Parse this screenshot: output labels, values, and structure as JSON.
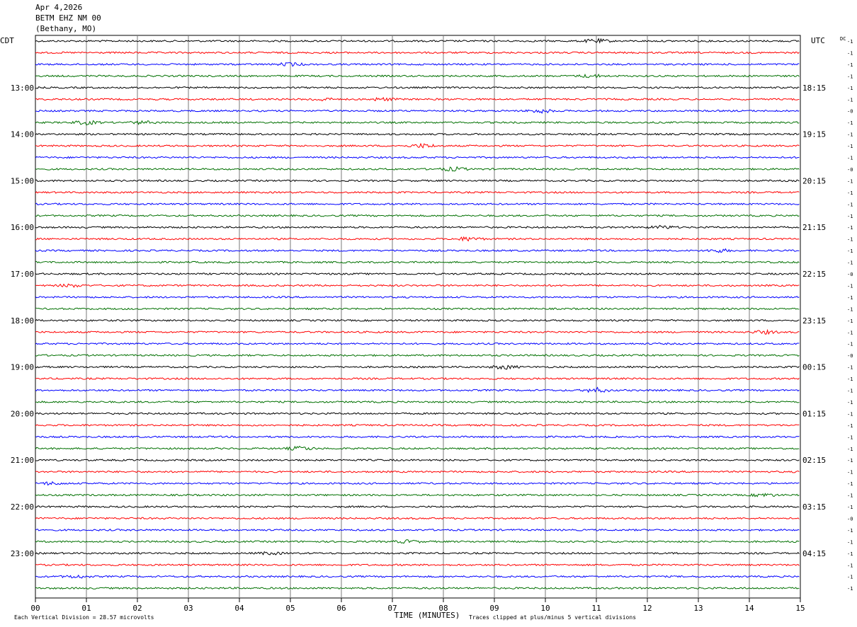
{
  "header": {
    "date": "Apr 4,2026",
    "station": "BETM EHZ NM 00",
    "location": "(Bethany, MO)"
  },
  "chart_data": {
    "type": "line",
    "left_axis_label": "CDT",
    "right_axis_label": "UTC",
    "dc_label": "DC",
    "xlabel": "TIME (MINUTES)",
    "x_ticks": [
      "00",
      "01",
      "02",
      "03",
      "04",
      "05",
      "06",
      "07",
      "08",
      "09",
      "10",
      "11",
      "12",
      "13",
      "14",
      "15"
    ],
    "xlim": [
      0,
      15
    ],
    "grid": "vertical",
    "trace_colors": [
      "#000000",
      "#ff0000",
      "#0000ff",
      "#007000"
    ],
    "left_hour_labels": [
      "13:00",
      "14:00",
      "15:00",
      "16:00",
      "17:00",
      "18:00",
      "19:00",
      "20:00",
      "21:00",
      "22:00",
      "23:00"
    ],
    "right_hour_labels": [
      "18:15",
      "19:15",
      "20:15",
      "21:15",
      "22:15",
      "23:15",
      "00:15",
      "01:15",
      "02:15",
      "03:15",
      "04:15"
    ],
    "dc_offsets": [
      "-1",
      "-1",
      "-1",
      "-1",
      "-1",
      "-1",
      "-0",
      "-1",
      "-1",
      "-1",
      "-1",
      "-0",
      "-1",
      "-1",
      "-1",
      "-1",
      "-1",
      "-1",
      "-1",
      "-1",
      "-0",
      "-1",
      "-1",
      "-1",
      "-1",
      "-1",
      "-1",
      "-0",
      "-1",
      "-1",
      "-1",
      "-1",
      "-1",
      "-1",
      "-1",
      "-1",
      "-1",
      "-1",
      "-1",
      "-1",
      "-1",
      "-0",
      "-1",
      "-1",
      "-1",
      "-1",
      "-1",
      "-1"
    ],
    "bursts": [
      {
        "trace": 0,
        "minute": 11.0,
        "amp": 2.5
      },
      {
        "trace": 2,
        "minute": 5.0,
        "amp": 2.0
      },
      {
        "trace": 3,
        "minute": 10.9,
        "amp": 2.0
      },
      {
        "trace": 5,
        "minute": 5.6,
        "amp": 1.8
      },
      {
        "trace": 5,
        "minute": 6.8,
        "amp": 1.8
      },
      {
        "trace": 6,
        "minute": 9.9,
        "amp": 2.5
      },
      {
        "trace": 7,
        "minute": 1.0,
        "amp": 2.5
      },
      {
        "trace": 7,
        "minute": 2.1,
        "amp": 1.8
      },
      {
        "trace": 9,
        "minute": 7.6,
        "amp": 2.5
      },
      {
        "trace": 11,
        "minute": 8.2,
        "amp": 2.5
      },
      {
        "trace": 16,
        "minute": 12.3,
        "amp": 2.0
      },
      {
        "trace": 17,
        "minute": 8.5,
        "amp": 2.5
      },
      {
        "trace": 18,
        "minute": 13.4,
        "amp": 2.0
      },
      {
        "trace": 21,
        "minute": 0.7,
        "amp": 1.8
      },
      {
        "trace": 25,
        "minute": 14.3,
        "amp": 2.0
      },
      {
        "trace": 28,
        "minute": 9.2,
        "amp": 2.5
      },
      {
        "trace": 30,
        "minute": 11.0,
        "amp": 3.0
      },
      {
        "trace": 35,
        "minute": 5.2,
        "amp": 2.5
      },
      {
        "trace": 38,
        "minute": 0.3,
        "amp": 1.8
      },
      {
        "trace": 39,
        "minute": 14.3,
        "amp": 2.0
      },
      {
        "trace": 43,
        "minute": 7.3,
        "amp": 1.8
      },
      {
        "trace": 44,
        "minute": 4.6,
        "amp": 1.5
      },
      {
        "trace": 46,
        "minute": 0.8,
        "amp": 1.8
      }
    ]
  },
  "footer": {
    "scale_note": "Each Vertical Division =   28.57 microvolts",
    "clip_note": "Traces clipped at plus/minus 5 vertical divisions"
  }
}
